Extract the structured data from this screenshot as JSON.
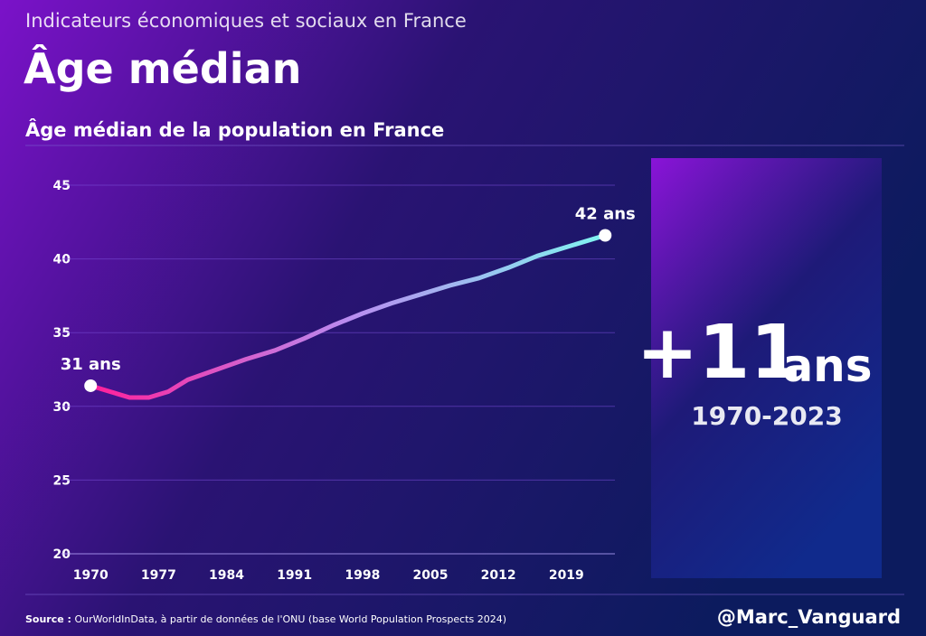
{
  "header": {
    "kicker": "Indicateurs économiques et sociaux en France",
    "title": "Âge médian"
  },
  "chart_data": {
    "type": "line",
    "title": "Âge médian de la population en France",
    "x": [
      1970,
      1972,
      1974,
      1976,
      1978,
      1980,
      1983,
      1986,
      1989,
      1992,
      1995,
      1998,
      2001,
      2004,
      2007,
      2010,
      2013,
      2016,
      2019,
      2023
    ],
    "values": [
      31.4,
      31.0,
      30.6,
      30.6,
      31.0,
      31.8,
      32.5,
      33.2,
      33.8,
      34.6,
      35.5,
      36.3,
      37.0,
      37.6,
      38.2,
      38.7,
      39.4,
      40.2,
      40.8,
      41.6
    ],
    "gradient": [
      "#ff1f9a",
      "#b98cf0",
      "#7ff5f0"
    ],
    "xlim": [
      1967,
      2024
    ],
    "xticks": [
      1970,
      1977,
      1984,
      1991,
      1998,
      2005,
      2012,
      2019
    ],
    "ylim": [
      20,
      45
    ],
    "yticks": [
      20,
      25,
      30,
      35,
      40,
      45
    ],
    "grid": true,
    "annotations": [
      "31 ans",
      "42 ans"
    ]
  },
  "callout": {
    "value": "+11",
    "unit": "ans",
    "period": "1970-2023"
  },
  "footer": {
    "source_label": "Source :",
    "source": "OurWorldInData, à partir de données de l'ONU (base World Population Prospects 2024)",
    "handle": "@Marc_Vanguard"
  }
}
